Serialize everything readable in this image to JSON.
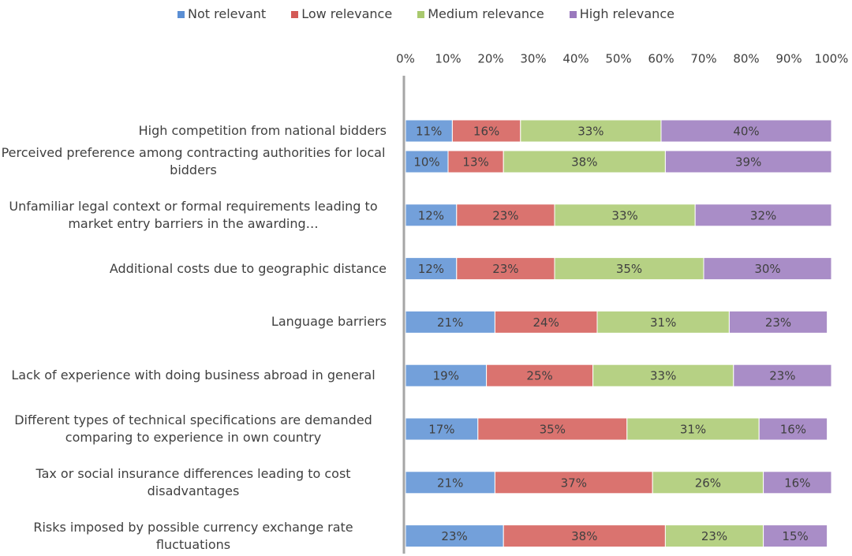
{
  "chart_data": {
    "type": "stacked-bar-horizontal",
    "categories": [
      "High competition from national bidders",
      "Perceived preference among contracting authorities for local bidders",
      "Unfamiliar legal context or formal requirements leading to market entry barriers in the awarding…",
      "Additional costs due to geographic distance",
      "Language barriers",
      "Lack of experience with doing business abroad in general",
      "Different types of technical specifications are demanded comparing to experience in own country",
      "Tax or social insurance differences leading to cost disadvantages",
      "Risks imposed by possible currency exchange rate fluctuations"
    ],
    "series": [
      {
        "name": "Not relevant",
        "color": "#5b8fd4",
        "values": [
          11,
          10,
          12,
          12,
          21,
          19,
          17,
          21,
          23
        ],
        "value_labels": [
          "11%",
          "10%",
          "12%",
          "12%",
          "21%",
          "19%",
          "17%",
          "21%",
          "23%"
        ]
      },
      {
        "name": "Low relevance",
        "color": "#d45a56",
        "values": [
          16,
          13,
          23,
          23,
          24,
          25,
          35,
          37,
          38
        ],
        "value_labels": [
          "16%",
          "13%",
          "23%",
          "23%",
          "24%",
          "25%",
          "35%",
          "37%",
          "38%"
        ]
      },
      {
        "name": "Medium relevance",
        "color": "#a9c96e",
        "values": [
          33,
          38,
          33,
          35,
          31,
          33,
          31,
          26,
          23
        ],
        "value_labels": [
          "33%",
          "38%",
          "33%",
          "35%",
          "31%",
          "33%",
          "31%",
          "26%",
          "23%"
        ]
      },
      {
        "name": "High relevance",
        "color": "#9a79bd",
        "values": [
          40,
          39,
          32,
          30,
          23,
          23,
          16,
          16,
          15
        ],
        "value_labels": [
          "40%",
          "39%",
          "32%",
          "30%",
          "23%",
          "23%",
          "16%",
          "16%",
          "15%"
        ]
      }
    ],
    "xlim": [
      0,
      100
    ],
    "xticks": [
      {
        "value": 0,
        "label": "0%"
      },
      {
        "value": 10,
        "label": "10%"
      },
      {
        "value": 20,
        "label": "20%"
      },
      {
        "value": 30,
        "label": "30%"
      },
      {
        "value": 40,
        "label": "40%"
      },
      {
        "value": 50,
        "label": "50%"
      },
      {
        "value": 60,
        "label": "60%"
      },
      {
        "value": 70,
        "label": "70%"
      },
      {
        "value": 80,
        "label": "80%"
      },
      {
        "value": 90,
        "label": "90%"
      },
      {
        "value": 100,
        "label": "100%"
      }
    ],
    "legend": "top"
  }
}
